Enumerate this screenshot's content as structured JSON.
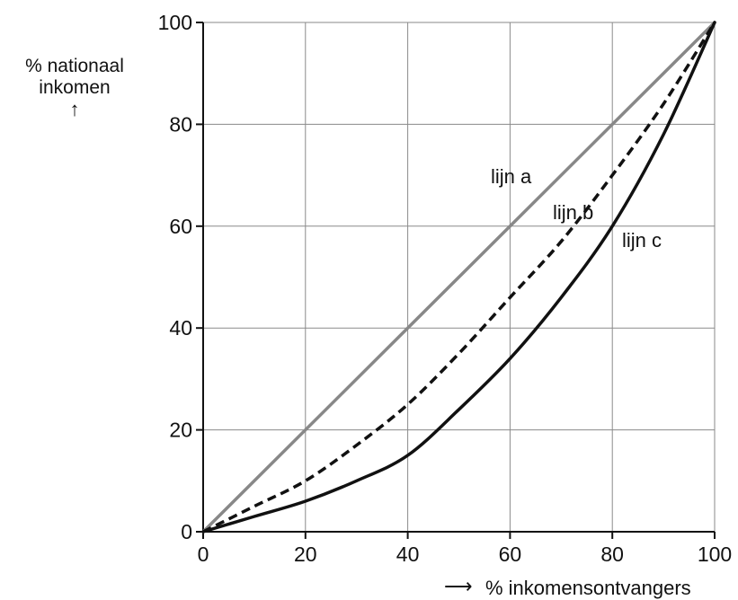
{
  "chart_data": {
    "type": "line",
    "ylabel_line1": "% nationaal",
    "ylabel_line2": "inkomen",
    "ylabel_arrow": "↑",
    "xlabel": "% inkomensontvangers",
    "xlabel_arrow": "⟶",
    "xlim": [
      0,
      100
    ],
    "ylim": [
      0,
      100
    ],
    "xticks": [
      0,
      20,
      40,
      60,
      80,
      100
    ],
    "yticks": [
      0,
      20,
      40,
      60,
      80,
      100
    ],
    "grid": true,
    "series": [
      {
        "name": "lijn a",
        "style": "solid",
        "color": "#888888",
        "x": [
          0,
          100
        ],
        "y": [
          0,
          100
        ]
      },
      {
        "name": "lijn b",
        "style": "dashed",
        "color": "#111111",
        "x": [
          0,
          10,
          20,
          30,
          40,
          50,
          60,
          70,
          80,
          90,
          100
        ],
        "y": [
          0,
          5,
          10,
          17,
          25,
          35,
          46,
          57,
          70,
          84,
          100
        ]
      },
      {
        "name": "lijn c",
        "style": "solid",
        "color": "#111111",
        "x": [
          0,
          10,
          20,
          30,
          40,
          50,
          60,
          70,
          80,
          90,
          100
        ],
        "y": [
          0,
          3,
          6,
          10,
          15,
          24,
          34,
          46,
          60,
          78,
          100
        ]
      }
    ]
  }
}
